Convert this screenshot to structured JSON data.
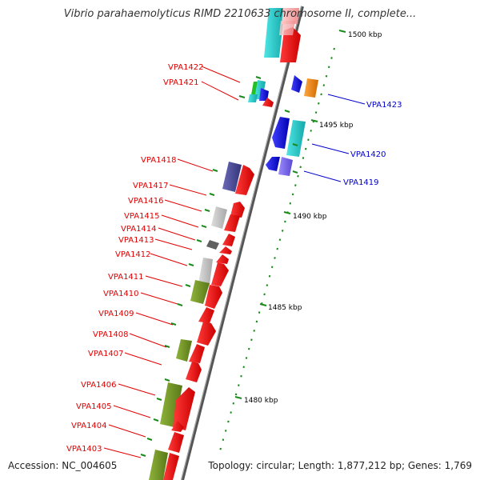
{
  "title": "Vibrio parahaemolyticus RIMD 2210633 chromosome II, complete...",
  "accession": "Accession: NC_004605",
  "topology": "Topology: circular; Length: 1,877,212 bp; Genes: 1,769",
  "kbp_labels": [
    "1500 kbp",
    "1495 kbp",
    "1490 kbp",
    "1485 kbp",
    "1480 kbp"
  ],
  "left_genes": [
    "VPA1422",
    "VPA1421",
    "VPA1418",
    "VPA1417",
    "VPA1416",
    "VPA1415",
    "VPA1414",
    "VPA1413",
    "VPA1412",
    "VPA1411",
    "VPA1410",
    "VPA1409",
    "VPA1408",
    "VPA1407",
    "VPA1406",
    "VPA1405",
    "VPA1404",
    "VPA1403"
  ],
  "right_genes": [
    "VPA1423",
    "VPA1420",
    "VPA1419"
  ],
  "colors": {
    "red": "#ff0000",
    "cyan": "#22d3d3",
    "blue": "#1a1aff",
    "olive": "#6e8e22",
    "gray": "#c0c0c0",
    "navy": "#4a4a9a",
    "orange": "#ff8800",
    "green_tick": "#1a8a1a",
    "pink": "#ffb0b0",
    "label_red": "#e00000",
    "label_blue": "#0000cc"
  }
}
